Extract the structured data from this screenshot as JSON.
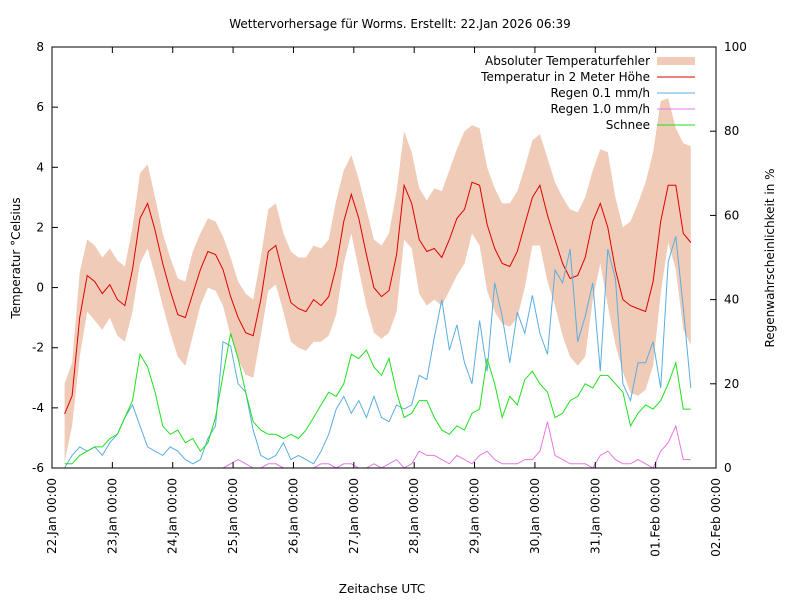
{
  "chart_data": {
    "type": "line",
    "title": "Wettervorhersage für Worms. Erstellt: 22.Jan 2026 06:39",
    "xlabel": "Zeitachse UTC",
    "ylabel": "Temperatur °Celsius",
    "y2label": "Regenwahrscheinlichkeit in %",
    "ylim": [
      -6,
      8
    ],
    "y2lim": [
      0,
      100
    ],
    "yticks": [
      "-6",
      "-4",
      "-2",
      "0",
      "2",
      "4",
      "6",
      "8"
    ],
    "y2ticks": [
      "0",
      "20",
      "40",
      "60",
      "80",
      "100"
    ],
    "xlim_hours": [
      0,
      264
    ],
    "xticks": [
      "22.Jan 00:00",
      "23.Jan 00:00",
      "24.Jan 00:00",
      "25.Jan 00:00",
      "26.Jan 00:00",
      "27.Jan 00:00",
      "28.Jan 00:00",
      "29.Jan 00:00",
      "30.Jan 00:00",
      "31.Jan 00:00",
      "01.Feb 00:00",
      "02.Feb 00:00"
    ],
    "grid": false,
    "legend_position": "top-right",
    "legend": [
      {
        "label": "Absoluter Temperaturfehler",
        "kind": "band",
        "color": "#efcbb8"
      },
      {
        "label": "Temperatur in 2 Meter Höhe",
        "kind": "line",
        "color": "#e00000"
      },
      {
        "label": "Regen 0.1 mm/h",
        "kind": "line",
        "color": "#5aaee0"
      },
      {
        "label": "Regen 1.0 mm/h",
        "kind": "line",
        "color": "#e678e6"
      },
      {
        "label": "Schnee",
        "kind": "line",
        "color": "#1ee01e"
      }
    ],
    "x_hours": [
      5,
      8,
      11,
      14,
      17,
      20,
      23,
      26,
      29,
      32,
      35,
      38,
      41,
      44,
      47,
      50,
      53,
      56,
      59,
      62,
      65,
      68,
      71,
      74,
      77,
      80,
      83,
      86,
      89,
      92,
      95,
      98,
      101,
      104,
      107,
      110,
      113,
      116,
      119,
      122,
      125,
      128,
      131,
      134,
      137,
      140,
      143,
      146,
      149,
      152,
      155,
      158,
      161,
      164,
      167,
      170,
      173,
      176,
      179,
      182,
      185,
      188,
      191,
      194,
      197,
      200,
      203,
      206,
      209,
      212,
      215,
      218,
      221,
      224,
      227,
      230,
      233,
      236,
      239,
      242,
      245,
      248,
      251,
      254
    ],
    "series": [
      {
        "name": "Temperatur in 2 Meter Höhe",
        "axis": "y",
        "values": [
          -4.2,
          -3.6,
          -1.0,
          0.4,
          0.2,
          -0.2,
          0.1,
          -0.4,
          -0.6,
          0.6,
          2.3,
          2.8,
          1.9,
          0.8,
          -0.1,
          -0.9,
          -1.0,
          -0.2,
          0.6,
          1.2,
          1.1,
          0.6,
          -0.3,
          -1.0,
          -1.5,
          -1.6,
          -0.4,
          1.2,
          1.4,
          0.4,
          -0.5,
          -0.7,
          -0.8,
          -0.4,
          -0.6,
          -0.3,
          0.7,
          2.2,
          3.1,
          2.3,
          1.1,
          0.0,
          -0.3,
          -0.1,
          1.1,
          3.4,
          2.8,
          1.6,
          1.2,
          1.3,
          1.0,
          1.6,
          2.3,
          2.6,
          3.5,
          3.4,
          2.1,
          1.3,
          0.8,
          0.7,
          1.2,
          2.1,
          3.0,
          3.4,
          2.4,
          1.6,
          0.8,
          0.3,
          0.4,
          1.0,
          2.2,
          2.8,
          2.0,
          0.6,
          -0.4,
          -0.6,
          -0.7,
          -0.8,
          0.2,
          2.2,
          3.4,
          3.4,
          1.8,
          1.5
        ]
      },
      {
        "name": "Absoluter Temperaturfehler (upper)",
        "axis": "y",
        "values": [
          -3.2,
          -2.5,
          0.5,
          1.6,
          1.4,
          1.0,
          1.3,
          0.9,
          0.7,
          2.0,
          3.8,
          4.1,
          3.0,
          1.8,
          1.0,
          0.3,
          0.2,
          1.2,
          1.8,
          2.3,
          2.2,
          1.7,
          1.0,
          0.2,
          -0.2,
          -0.4,
          1.0,
          2.6,
          2.8,
          1.8,
          1.2,
          1.0,
          1.0,
          1.4,
          1.3,
          1.6,
          2.9,
          3.9,
          4.4,
          3.6,
          2.6,
          1.6,
          1.4,
          1.8,
          3.2,
          5.2,
          4.5,
          3.3,
          2.9,
          3.3,
          3.2,
          3.9,
          4.6,
          5.2,
          5.4,
          5.3,
          4.0,
          3.3,
          2.8,
          2.8,
          3.2,
          4.0,
          4.9,
          5.1,
          4.3,
          3.5,
          3.0,
          2.6,
          2.5,
          3.0,
          3.9,
          4.6,
          4.5,
          3.0,
          2.0,
          2.2,
          2.8,
          3.5,
          4.5,
          6.2,
          6.3,
          5.3,
          4.8,
          4.7
        ]
      },
      {
        "name": "Absoluter Temperaturfehler (lower)",
        "axis": "y",
        "values": [
          -5.8,
          -4.6,
          -2.3,
          -0.8,
          -1.1,
          -1.4,
          -1.0,
          -1.6,
          -1.8,
          -0.8,
          0.8,
          1.3,
          0.4,
          -0.6,
          -1.5,
          -2.3,
          -2.6,
          -1.6,
          -0.6,
          0.0,
          -0.1,
          -0.6,
          -1.6,
          -2.4,
          -2.9,
          -3.0,
          -1.6,
          -0.1,
          0.1,
          -0.8,
          -1.8,
          -2.0,
          -2.1,
          -1.8,
          -1.8,
          -1.6,
          -0.9,
          0.8,
          1.8,
          0.6,
          -0.6,
          -1.5,
          -1.7,
          -1.5,
          -0.8,
          1.6,
          1.3,
          -0.2,
          -0.6,
          -0.4,
          -0.6,
          -0.1,
          0.4,
          0.8,
          1.8,
          1.4,
          -0.1,
          -0.8,
          -1.2,
          -1.3,
          -1.0,
          0.0,
          1.4,
          1.4,
          0.2,
          -0.6,
          -1.6,
          -2.3,
          -2.6,
          -2.3,
          -0.4,
          0.8,
          -0.6,
          -1.9,
          -2.8,
          -3.5,
          -3.6,
          -3.4,
          -2.6,
          -0.2,
          1.5,
          0.6,
          -1.4,
          -1.9
        ]
      },
      {
        "name": "Regen 0.1 mm/h",
        "axis": "y2",
        "values": [
          0,
          3,
          5,
          4,
          5,
          3,
          6,
          8,
          12,
          15,
          10,
          5,
          4,
          3,
          5,
          4,
          2,
          1,
          2,
          7,
          10,
          30,
          29,
          20,
          18,
          9,
          3,
          2,
          3,
          6,
          2,
          3,
          2,
          1,
          4,
          8,
          14,
          17,
          13,
          16,
          12,
          17,
          12,
          11,
          15,
          14,
          15,
          22,
          21,
          31,
          40,
          28,
          34,
          25,
          20,
          35,
          23,
          44,
          36,
          25,
          37,
          32,
          41,
          32,
          27,
          47,
          44,
          52,
          30,
          36,
          44,
          23,
          52,
          45,
          20,
          16,
          25,
          25,
          30,
          19,
          49,
          55,
          38,
          19
        ]
      },
      {
        "name": "Regen 1.0 mm/h",
        "axis": "y2",
        "values": [
          0,
          0,
          0,
          0,
          0,
          0,
          0,
          0,
          0,
          0,
          0,
          0,
          0,
          0,
          0,
          0,
          0,
          0,
          0,
          0,
          0,
          0,
          1,
          2,
          1,
          0,
          0,
          1,
          1,
          0,
          0,
          0,
          0,
          0,
          1,
          1,
          0,
          1,
          1,
          0,
          0,
          1,
          0,
          1,
          2,
          0,
          1,
          4,
          3,
          3,
          2,
          1,
          3,
          2,
          1,
          3,
          4,
          2,
          1,
          1,
          1,
          2,
          2,
          4,
          11,
          3,
          2,
          1,
          1,
          1,
          0,
          3,
          4,
          2,
          1,
          1,
          2,
          1,
          0,
          4,
          6,
          10,
          2,
          2
        ]
      },
      {
        "name": "Schnee",
        "axis": "y2",
        "values": [
          1,
          1,
          3,
          4,
          5,
          5,
          7,
          8,
          12,
          16,
          27,
          24,
          18,
          10,
          8,
          9,
          6,
          7,
          4,
          6,
          12,
          22,
          32,
          26,
          18,
          11,
          9,
          8,
          8,
          7,
          8,
          7,
          9,
          12,
          15,
          18,
          17,
          20,
          27,
          26,
          28,
          24,
          22,
          26,
          18,
          12,
          13,
          16,
          16,
          12,
          9,
          8,
          10,
          9,
          13,
          14,
          26,
          20,
          12,
          17,
          15,
          21,
          23,
          20,
          18,
          12,
          13,
          16,
          17,
          20,
          19,
          22,
          22,
          20,
          18,
          10,
          13,
          15,
          14,
          16,
          20,
          25,
          14,
          14
        ]
      }
    ]
  }
}
